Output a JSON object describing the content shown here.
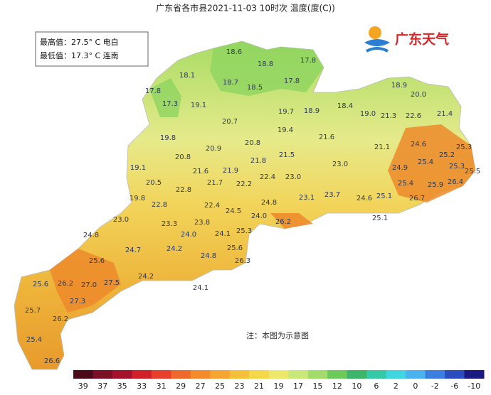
{
  "header": {
    "title": "广东省各市县2021-11-03 10时次 温度(度(C))"
  },
  "summary": {
    "max": "最高值：27.5° C 电白",
    "min": "最低值：17.3° C 连南"
  },
  "logo": {
    "text": "广东天气"
  },
  "note": "注：本图为示意图",
  "labels": [
    "18.6",
    "18.8",
    "17.8",
    "18.1",
    "18.7",
    "18.5",
    "17.8",
    "18.9",
    "20.0",
    "17.8",
    "17.3",
    "19.1",
    "19.7",
    "18.9",
    "18.4",
    "19.0",
    "21.3",
    "22.6",
    "21.4",
    "20.7",
    "19.4",
    "21.6",
    "19.8",
    "20.8",
    "20.9",
    "21.8",
    "21.5",
    "24.6",
    "25.3",
    "21.1",
    "25.2",
    "20.8",
    "23.0",
    "25.4",
    "25.3",
    "25.5",
    "19.1",
    "21.6",
    "21.9",
    "24.9",
    "22.4",
    "23.0",
    "20.5",
    "21.7",
    "22.2",
    "25.4",
    "25.9",
    "26.4",
    "22.8",
    "25.1",
    "26.7",
    "19.8",
    "24.8",
    "23.1",
    "23.7",
    "24.6",
    "22.8",
    "22.4",
    "24.5",
    "24.0",
    "23.0",
    "26.2",
    "25.1",
    "23.3",
    "23.8",
    "24.8",
    "24.0",
    "24.1",
    "25.3",
    "24.2",
    "25.6",
    "24.7",
    "24.8",
    "26.3",
    "25.6",
    "24.2",
    "25.6",
    "26.2",
    "27.0",
    "27.5",
    "24.1",
    "27.3",
    "25.7",
    "26.2",
    "25.4",
    "26.6"
  ],
  "colorbar": {
    "labels": [
      39,
      37,
      35,
      33,
      31,
      29,
      27,
      25,
      23,
      21,
      19,
      17,
      15,
      12,
      10,
      6,
      2,
      0,
      -2,
      -6,
      -10
    ],
    "colors": [
      "#4a0a1a",
      "#7a0f26",
      "#a4112a",
      "#d1202a",
      "#e8402a",
      "#f0692c",
      "#f48c2e",
      "#f5a531",
      "#f6c13a",
      "#f5d84a",
      "#eee86a",
      "#c9e87a",
      "#a2dc6a",
      "#6cc95a",
      "#3fb56a",
      "#35c9a8",
      "#3fd6e0",
      "#4ab2ee",
      "#3b7fe0",
      "#2a4dc0",
      "#1a1a80"
    ]
  }
}
